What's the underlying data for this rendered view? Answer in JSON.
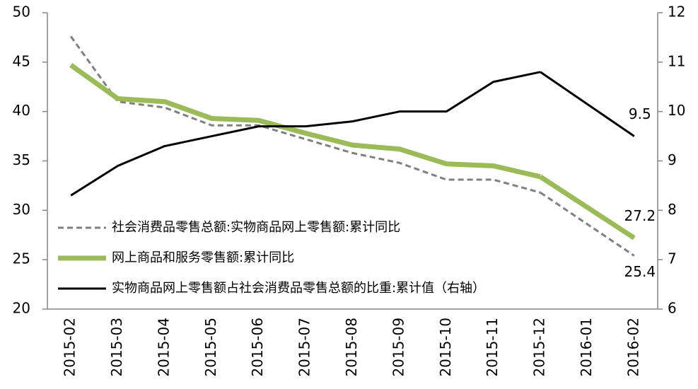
{
  "chart_data": {
    "type": "line",
    "categories": [
      "2015-02",
      "2015-03",
      "2015-04",
      "2015-05",
      "2015-06",
      "2015-07",
      "2015-08",
      "2015-09",
      "2015-10",
      "2015-11",
      "2015-12",
      "2016-01",
      "2016-02"
    ],
    "series": [
      {
        "name": "社会消费品零售总额:实物商品网上零售额:累计同比",
        "color": "#808080",
        "style": "dashed",
        "label_last": true,
        "values": [
          47.6,
          41.0,
          40.4,
          38.6,
          38.6,
          37.2,
          35.8,
          34.8,
          33.1,
          33.1,
          31.8,
          null,
          25.4
        ]
      },
      {
        "name": "网上商品和服务零售额:累计同比",
        "color": "#9bbb59",
        "style": "thick",
        "label_last": true,
        "values": [
          44.7,
          41.3,
          41.0,
          39.3,
          39.1,
          37.8,
          36.6,
          36.2,
          34.7,
          34.5,
          33.4,
          null,
          27.2
        ]
      },
      {
        "name": "实物商品网上零售额占社会消费品零售总额的比重:累计值（右轴）",
        "color": "#000000",
        "style": "solid",
        "axis": "y2",
        "label_last": true,
        "values": [
          8.3,
          8.9,
          9.3,
          9.5,
          9.7,
          9.7,
          9.8,
          10.0,
          10.0,
          10.6,
          10.8,
          null,
          9.5
        ]
      }
    ],
    "ylim": [
      20,
      50
    ],
    "yticks": [
      20,
      25,
      30,
      35,
      40,
      45,
      50
    ],
    "y2lim": [
      6,
      12
    ],
    "y2ticks": [
      6,
      7,
      8,
      9,
      10,
      11,
      12
    ],
    "connect_gaps": true,
    "legend": "lower left"
  }
}
